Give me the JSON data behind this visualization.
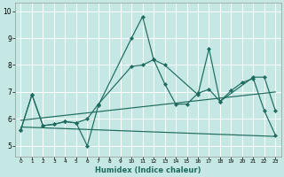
{
  "xlabel": "Humidex (Indice chaleur)",
  "background_color": "#c5e8e4",
  "grid_color": "#ffffff",
  "line_color": "#1e6b5e",
  "xlim": [
    -0.5,
    23.5
  ],
  "ylim": [
    4.6,
    10.3
  ],
  "yticks": [
    5,
    6,
    7,
    8,
    9,
    10
  ],
  "xticks": [
    0,
    1,
    2,
    3,
    4,
    5,
    6,
    7,
    8,
    9,
    10,
    11,
    12,
    13,
    14,
    15,
    16,
    17,
    18,
    19,
    20,
    21,
    22,
    23
  ],
  "lines": [
    {
      "x": [
        0,
        1,
        2,
        3,
        4,
        5,
        6,
        7,
        10,
        11,
        12,
        13,
        16,
        17,
        18,
        21,
        22,
        23
      ],
      "y": [
        5.6,
        6.9,
        5.75,
        5.8,
        5.9,
        5.85,
        5.0,
        6.5,
        9.0,
        9.8,
        8.2,
        8.0,
        6.9,
        8.6,
        6.65,
        7.55,
        7.55,
        6.3
      ],
      "has_markers": true
    },
    {
      "x": [
        0,
        1,
        2,
        3,
        4,
        5,
        6,
        7,
        10,
        11,
        12,
        13,
        14,
        15,
        16,
        17,
        18,
        19,
        20,
        21,
        22,
        23
      ],
      "y": [
        5.6,
        6.9,
        5.75,
        5.8,
        5.9,
        5.85,
        6.0,
        6.55,
        7.95,
        8.0,
        8.2,
        7.3,
        6.55,
        6.55,
        6.95,
        7.1,
        6.65,
        7.05,
        7.35,
        7.5,
        6.3,
        5.4
      ],
      "has_markers": true
    },
    {
      "x": [
        0,
        23
      ],
      "y": [
        5.95,
        7.0
      ],
      "has_markers": false
    },
    {
      "x": [
        0,
        23
      ],
      "y": [
        5.7,
        5.35
      ],
      "has_markers": false
    }
  ]
}
